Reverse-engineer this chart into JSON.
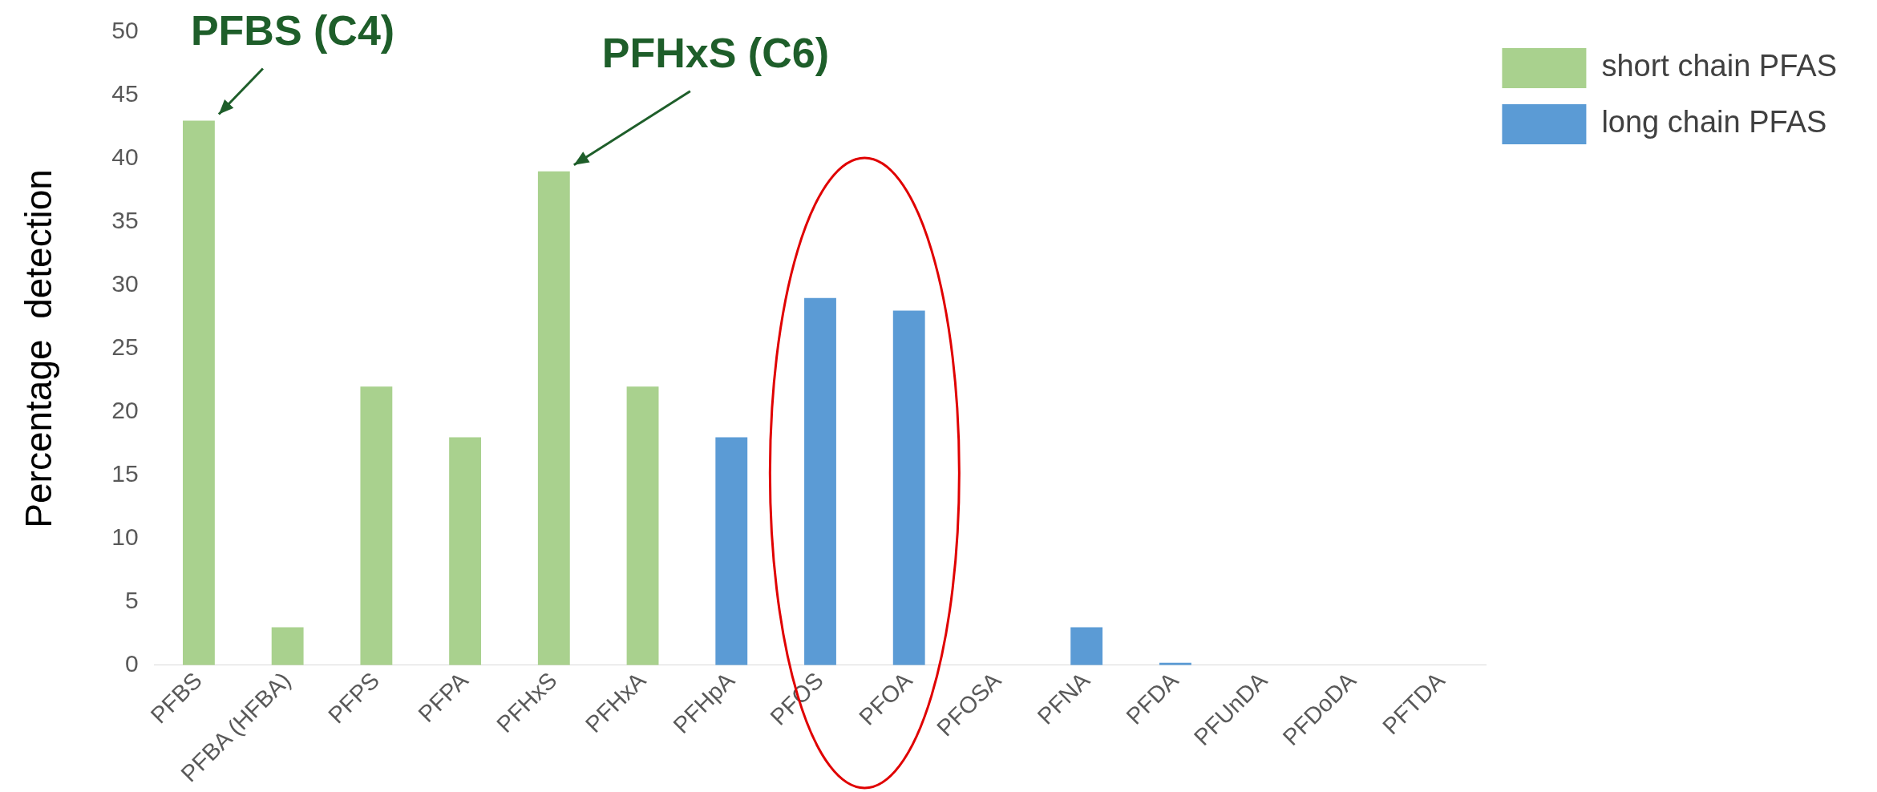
{
  "chart_data": {
    "type": "bar",
    "ylabel": "Percentage  detection",
    "categories": [
      "PFBS",
      "PFBA (HFBA)",
      "PFPS",
      "PFPA",
      "PFHxS",
      "PFHxA",
      "PFHpA",
      "PFOS",
      "PFOA",
      "PFOSA",
      "PFNA",
      "PFDA",
      "PFUnDA",
      "PFDoDA",
      "PFTDA"
    ],
    "series": [
      {
        "name": "short chain PFAS",
        "color": "#a9d18e",
        "values": [
          43,
          3,
          22,
          18,
          39,
          22,
          null,
          null,
          null,
          null,
          null,
          null,
          null,
          null,
          null
        ]
      },
      {
        "name": "long chain PFAS",
        "color": "#5b9bd5",
        "values": [
          null,
          null,
          null,
          null,
          null,
          null,
          18,
          29,
          28,
          0,
          3,
          0.2,
          0,
          0,
          0
        ]
      }
    ],
    "ylim": [
      0,
      50
    ],
    "yticks": [
      0,
      5,
      10,
      15,
      20,
      25,
      30,
      35,
      40,
      45,
      50
    ],
    "grid": false,
    "legend": "top right",
    "annotations": [
      {
        "text": "PFBS (C4)",
        "x": "PFBS",
        "y": 43
      },
      {
        "text": "PFHxS (C6)",
        "x": "PFHxS",
        "y": 39
      }
    ]
  }
}
